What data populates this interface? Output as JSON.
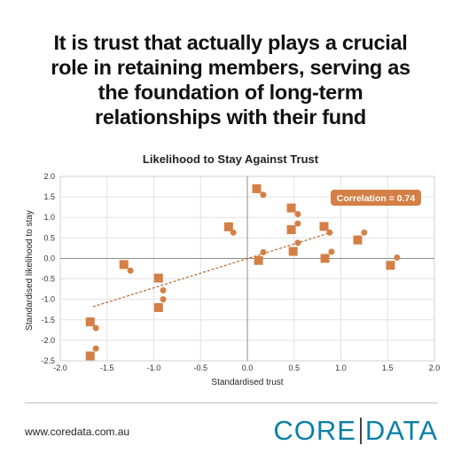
{
  "headline": {
    "line1": "It is trust that actually plays a crucial",
    "line2": "role in retaining members, serving as",
    "line3": "the foundation of long-term",
    "line4": "relationships with their fund"
  },
  "footer": {
    "url": "www.coredata.com.au",
    "brand_left": "CORE",
    "brand_right": "DATA",
    "brand_color": "#0b7fa6"
  },
  "chart_data": {
    "type": "scatter",
    "title": "Likelihood to Stay Against Trust",
    "xlabel": "Standardised trust",
    "ylabel": "Standardised likelihood to stay",
    "xlim": [
      -2.0,
      2.0
    ],
    "ylim": [
      -2.5,
      2.0
    ],
    "xticks": [
      "-2.0",
      "-1.5",
      "-1.0",
      "-0.5",
      "0.0",
      "0.5",
      "1.0",
      "1.5",
      "2.0"
    ],
    "yticks": [
      "2.0",
      "1.5",
      "1.0",
      "0.5",
      "0.0",
      "-0.5",
      "-1.0",
      "-1.5",
      "-2.0",
      "-2.5"
    ],
    "grid": true,
    "marker_color": "#d47f45",
    "series": [
      {
        "marker": "square",
        "x": [
          -1.68,
          -1.68,
          -1.32,
          -0.95,
          -0.95,
          -0.2,
          0.1,
          0.12,
          0.47,
          0.47,
          0.49,
          0.82,
          0.83,
          1.18,
          1.53
        ],
        "y": [
          -1.55,
          -2.38,
          -0.15,
          -0.48,
          -1.2,
          0.77,
          1.7,
          -0.05,
          1.23,
          0.7,
          0.17,
          0.78,
          0.0,
          0.45,
          -0.17
        ]
      },
      {
        "marker": "circle",
        "x": [
          -1.62,
          -1.62,
          -1.25,
          -0.9,
          -0.9,
          -0.15,
          0.17,
          0.17,
          0.54,
          0.54,
          0.54,
          0.88,
          0.9,
          1.25,
          1.6
        ],
        "y": [
          -1.7,
          -2.2,
          -0.3,
          -0.78,
          -1.0,
          0.63,
          1.55,
          0.15,
          1.08,
          0.85,
          0.38,
          0.63,
          0.16,
          0.63,
          0.02
        ]
      }
    ],
    "trendline": {
      "x": [
        -1.65,
        0.85
      ],
      "y": [
        -1.18,
        0.6
      ],
      "style": "dashed"
    },
    "annotation": {
      "text": "Correlation = 0.74",
      "color": "#d47f45"
    }
  }
}
